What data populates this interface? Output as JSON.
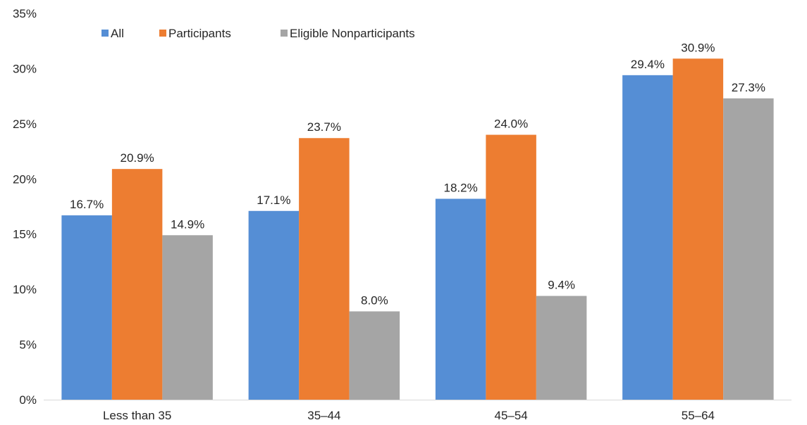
{
  "chart_data": {
    "type": "bar",
    "title": "",
    "xlabel": "",
    "ylabel": "",
    "categories": [
      "Less than 35",
      "35–44",
      "45–54",
      "55–64"
    ],
    "series": [
      {
        "name": "All",
        "color": "#558ED5",
        "values": [
          16.7,
          17.1,
          18.2,
          29.4
        ],
        "labels": [
          "16.7%",
          "17.1%",
          "18.2%",
          "29.4%"
        ]
      },
      {
        "name": "Participants",
        "color": "#ED7D31",
        "values": [
          20.9,
          23.7,
          24.0,
          30.9
        ],
        "labels": [
          "20.9%",
          "23.7%",
          "24.0%",
          "30.9%"
        ]
      },
      {
        "name": "Eligible Nonparticipants",
        "color": "#A5A5A5",
        "values": [
          14.9,
          8.0,
          9.4,
          27.3
        ],
        "labels": [
          "14.9%",
          "8.0%",
          "9.4%",
          "27.3%"
        ]
      }
    ],
    "ylim": [
      0,
      35
    ],
    "yticks": [
      0,
      5,
      10,
      15,
      20,
      25,
      30,
      35
    ],
    "ytick_labels": [
      "0%",
      "5%",
      "10%",
      "15%",
      "20%",
      "25%",
      "30%",
      "35%"
    ],
    "grid": false,
    "legend_position": "top-left"
  }
}
